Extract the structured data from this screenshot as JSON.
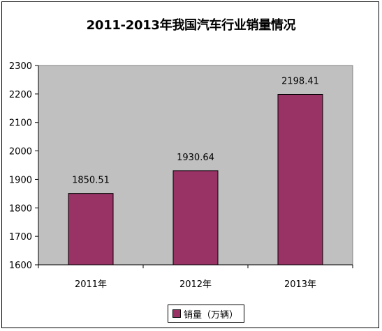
{
  "chart_data": {
    "type": "bar",
    "title": "2011-2013年我国汽车行业销量情况",
    "categories": [
      "2011年",
      "2012年",
      "2013年"
    ],
    "series": [
      {
        "name": "销量（万辆）",
        "values": [
          1850.51,
          1930.64,
          2198.41
        ],
        "color": "#993366"
      }
    ],
    "data_labels": [
      "1850.51",
      "1930.64",
      "2198.41"
    ],
    "ylim": [
      1600,
      2300
    ],
    "yticks": [
      1600,
      1700,
      1800,
      1900,
      2000,
      2100,
      2200,
      2300
    ],
    "grid": false,
    "legend_position": "bottom",
    "plot_background": "#c0c0c0"
  }
}
